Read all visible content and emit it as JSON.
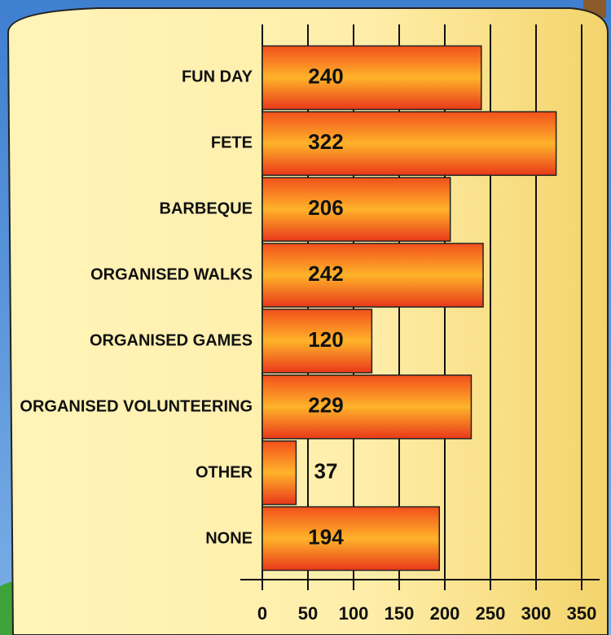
{
  "chart_data": {
    "type": "bar",
    "orientation": "horizontal",
    "categories": [
      "FUN DAY",
      "FETE",
      "BARBEQUE",
      "ORGANISED WALKS",
      "ORGANISED GAMES",
      "ORGANISED VOLUNTEERING",
      "OTHER",
      "NONE"
    ],
    "values": [
      240,
      322,
      206,
      242,
      120,
      229,
      37,
      194
    ],
    "color": "#ffb32a",
    "xlim": [
      0,
      350
    ],
    "xticks": [
      0,
      50,
      100,
      150,
      200,
      250,
      300,
      350
    ],
    "grid": true
  }
}
